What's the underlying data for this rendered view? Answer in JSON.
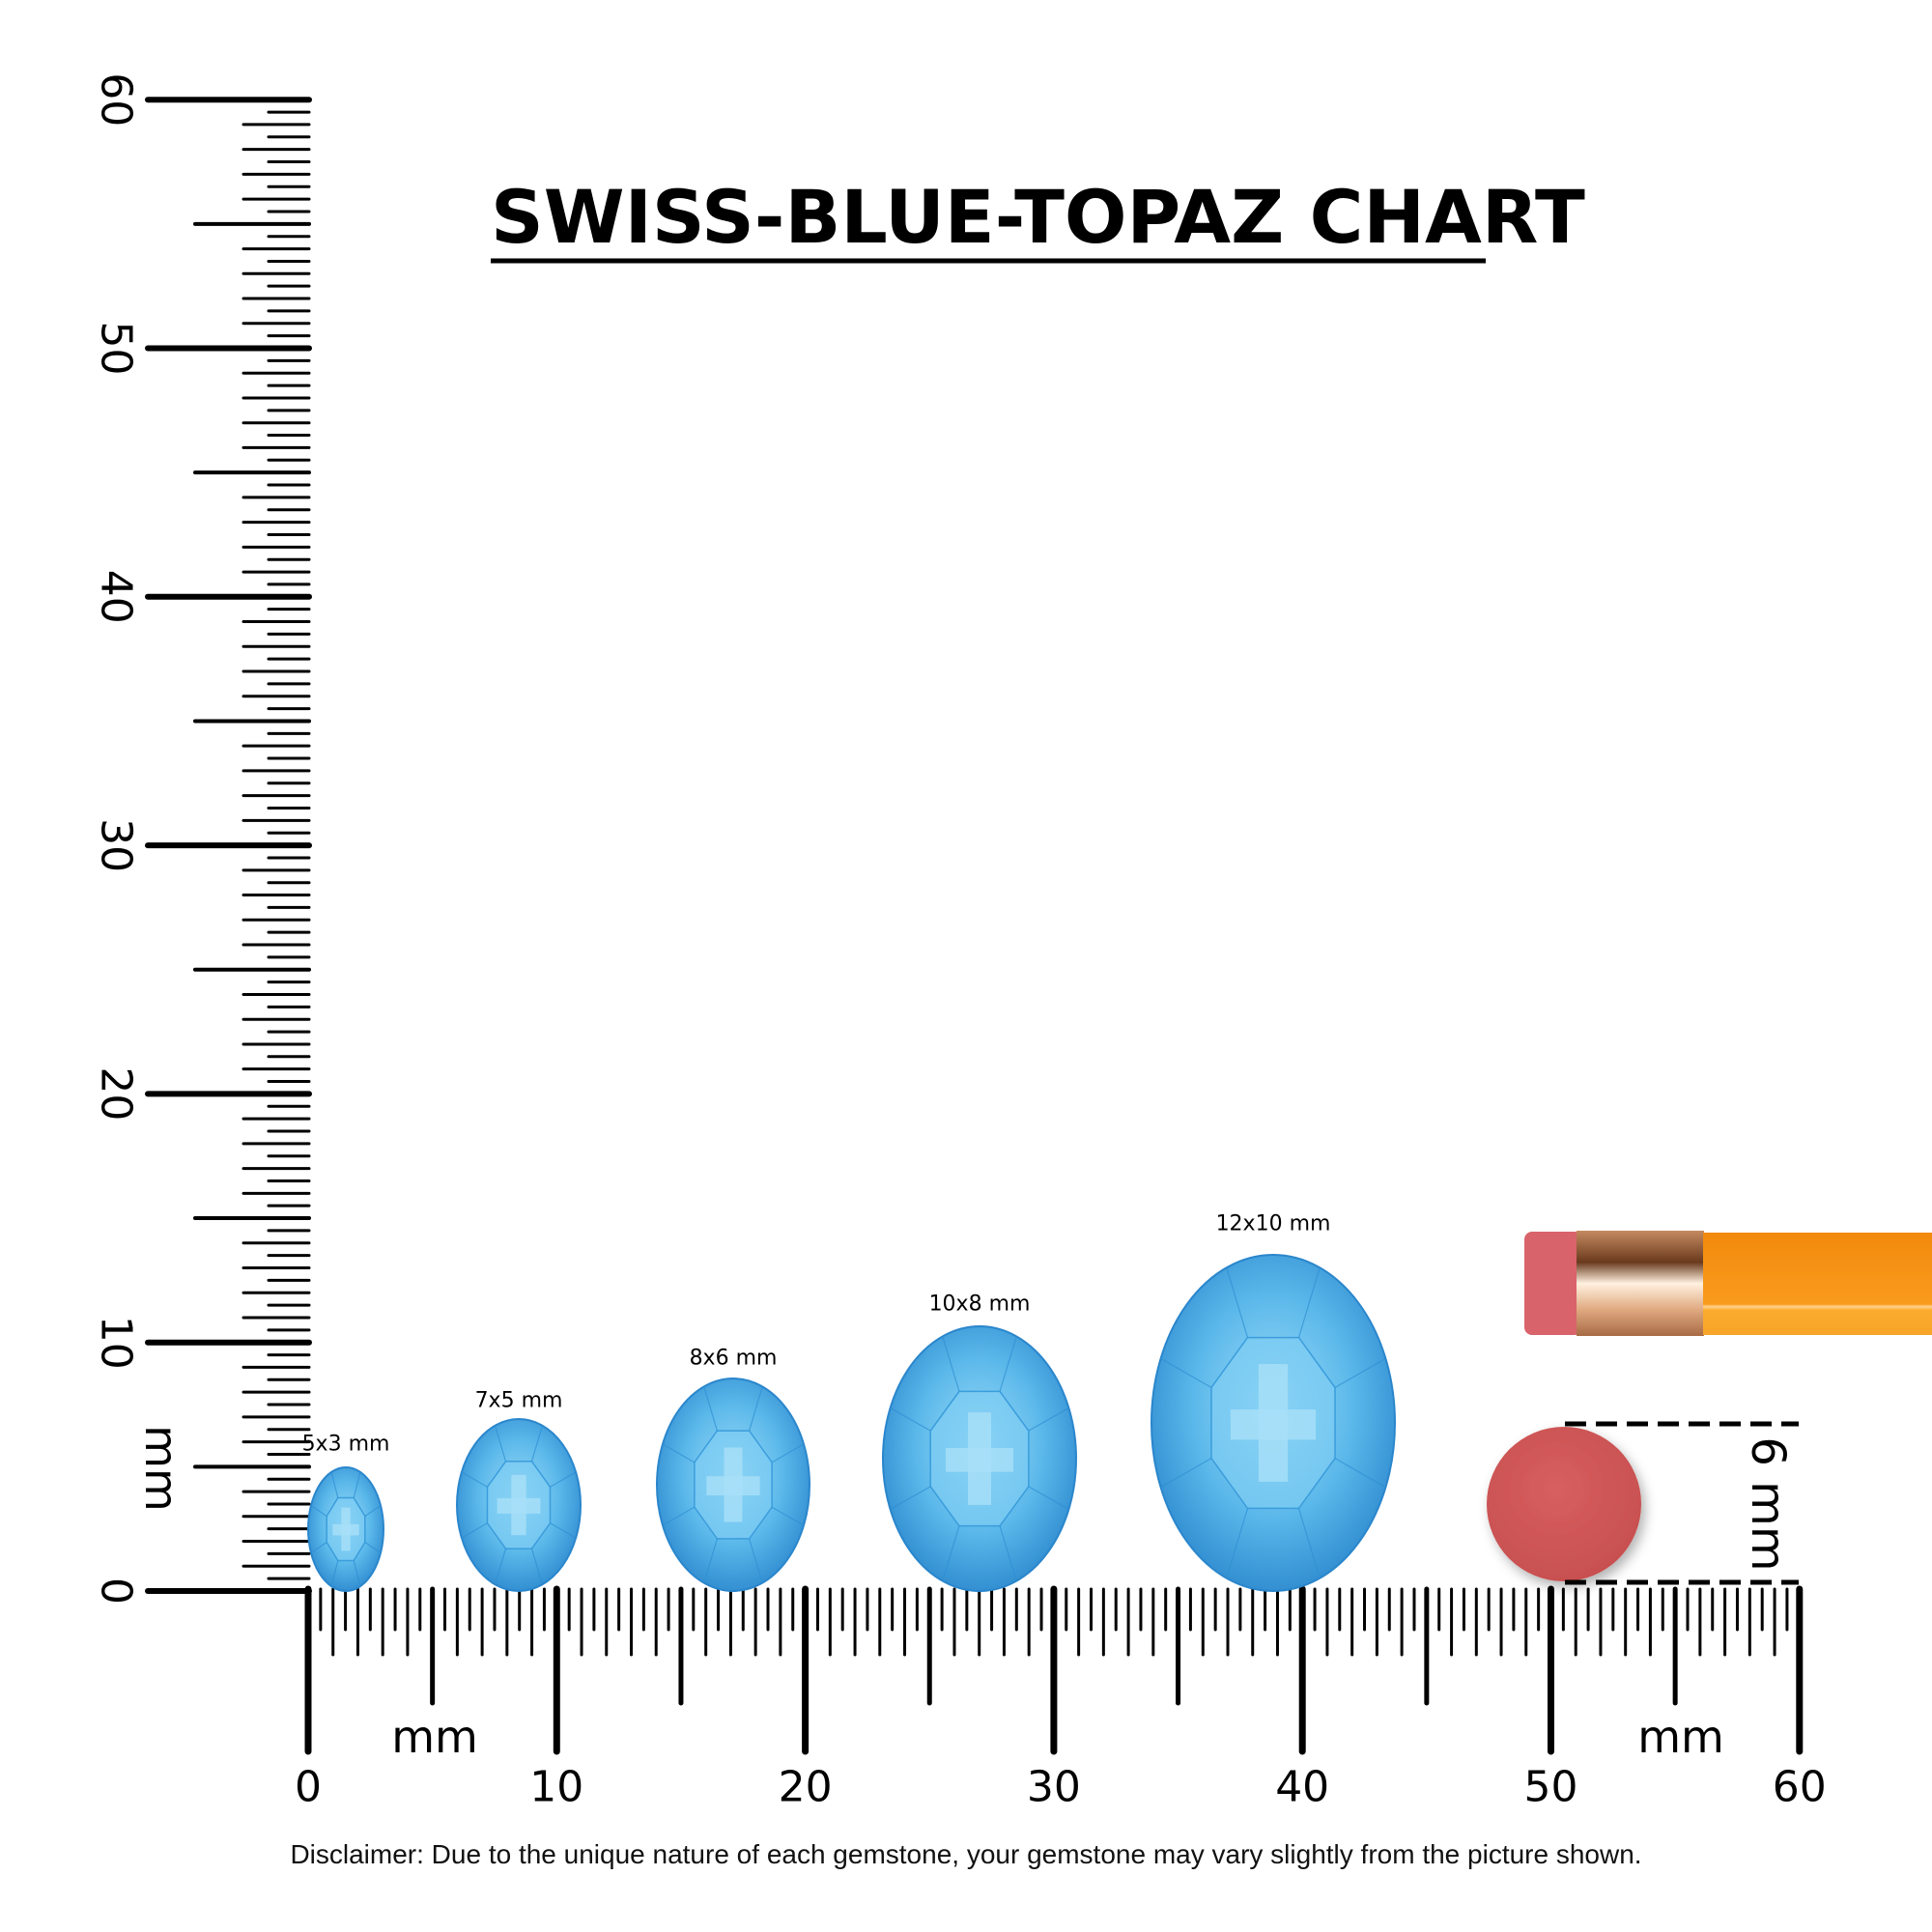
{
  "title": "SWISS-BLUE-TOPAZ CHART",
  "disclaimer": "Disclaimer: Due to the unique nature of each gemstone, your gemstone may vary slightly from the picture shown.",
  "vertical_ruler": {
    "unit": "mm",
    "labels": [
      "0",
      "10",
      "20",
      "30",
      "40",
      "50",
      "60"
    ]
  },
  "horizontal_ruler": {
    "unit": "mm",
    "labels": [
      "0",
      "10",
      "20",
      "30",
      "40",
      "50",
      "60"
    ]
  },
  "gems": [
    {
      "label": "5x3 mm"
    },
    {
      "label": "7x5 mm"
    },
    {
      "label": "8x6 mm"
    },
    {
      "label": "10x8 mm"
    },
    {
      "label": "12x10 mm"
    }
  ],
  "reference": {
    "label": "6 mm",
    "object": "pencil-eraser"
  },
  "colors": {
    "gem": "#4aaee6",
    "gem_light": "#8fd4f5",
    "gem_dark": "#1f7fc4",
    "eraser": "#d35a5a",
    "pencil": "#f7941d",
    "ferrule": "#d9a37a"
  }
}
